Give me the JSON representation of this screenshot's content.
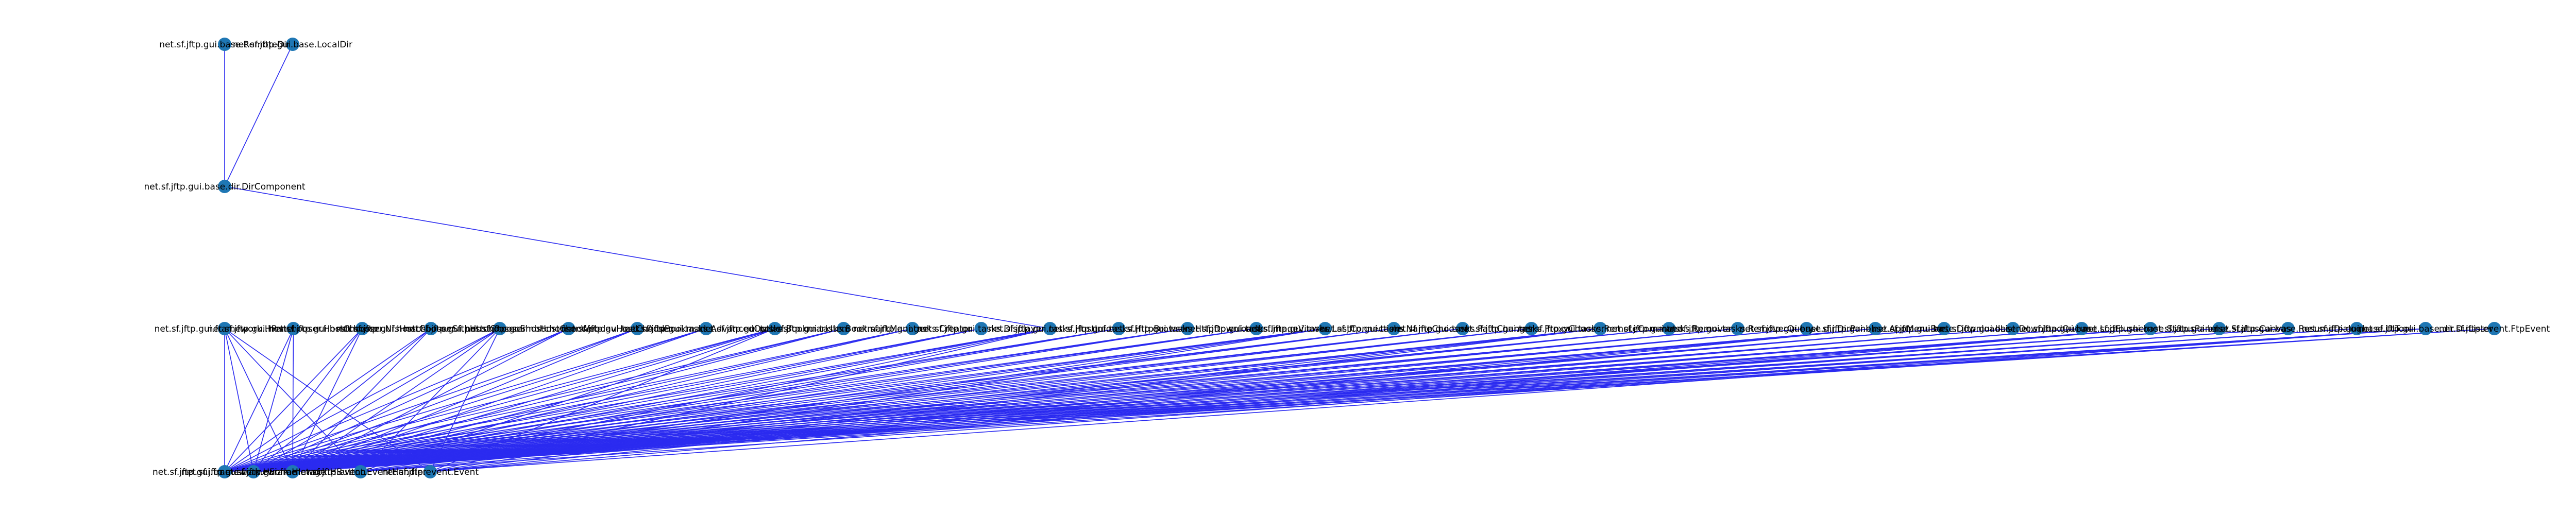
{
  "colors": {
    "node": "#1f77b4",
    "edge": "#2b2bf0",
    "label": "#000000",
    "background": "#ffffff"
  },
  "top_nodes": [
    "net.sf.jftp.gui.base.RemoteDir",
    "net.sf.jftp.gui.base.LocalDir"
  ],
  "mid_node": "net.sf.jftp.gui.base.dir.DirComponent",
  "upper_nodes": [
    "net.sf.jftp.gui.framework.HPanel",
    "net.sf.jftp.gui.hostchooser.HostChooser",
    "net.sf.jftp.gui.hostchooser.NfsHostChooser",
    "net.sf.jftp.gui.hostchooser.SftpHostChooser",
    "net.sf.jftp.gui.hostchooser.SmbHostChooser",
    "net.sf.jftp.gui.hostchooser.WebdavHostChooser",
    "net.sf.jftp.gui.tasks.AddBookmarks",
    "net.sf.jftp.gui.tasks.AdvancedOptions",
    "net.sf.jftp.gui.tasks.BookmarkItem",
    "net.sf.jftp.gui.tasks.BookmarkManager",
    "net.sf.jftp.gui.tasks.Creator",
    "net.sf.jftp.gui.tasks.Displayer",
    "net.sf.jftp.gui.tasks.HostInfo",
    "net.sf.jftp.gui.tasks.HttpBrowser",
    "net.sf.jftp.gui.tasks.HttpDownloader",
    "net.sf.jftp.gui.tasks.ImageViewer",
    "net.sf.jftp.gui.tasks.LastConnections",
    "net.sf.jftp.gui.tasks.NameChooser",
    "net.sf.jftp.gui.tasks.PathChanger",
    "net.sf.jftp.gui.tasks.ProxyChooser",
    "net.sf.jftp.gui.tasks.RemoteCommand",
    "net.sf.jftp.gui.tasks.Remover",
    "net.sf.jftp.gui.tasks.RemoverQuery",
    "net.sf.jftp.gui.base.dir.DirPanel",
    "net.sf.jftp.gui.base.AppMenuBar",
    "net.sf.jftp.gui.base.DownloadList",
    "net.sf.jftp.gui.base.DownloadQueue",
    "net.sf.jftp.gui.base.LogFlusher",
    "net.sf.jftp.gui.base.StatusPanel",
    "net.sf.jftp.gui.base.StatusCanvas",
    "net.sf.jftp.gui.base.ResumeDialog",
    "net.sf.jftp.gui.base.UITool",
    "net.sf.jftp.gui.base.dir.DirLister",
    "net.sf.jftp.event.FtpEvent"
  ],
  "bottom_nodes": [
    "net.sf.jftp.gui.framework.HFrame",
    "net.sf.jftp.gui.framework.HImage",
    "net.sf.jftp.gui.framework.HButton",
    "net.sf.jftp.event.EventHandler",
    "net.sf.jftp.event.Event"
  ]
}
